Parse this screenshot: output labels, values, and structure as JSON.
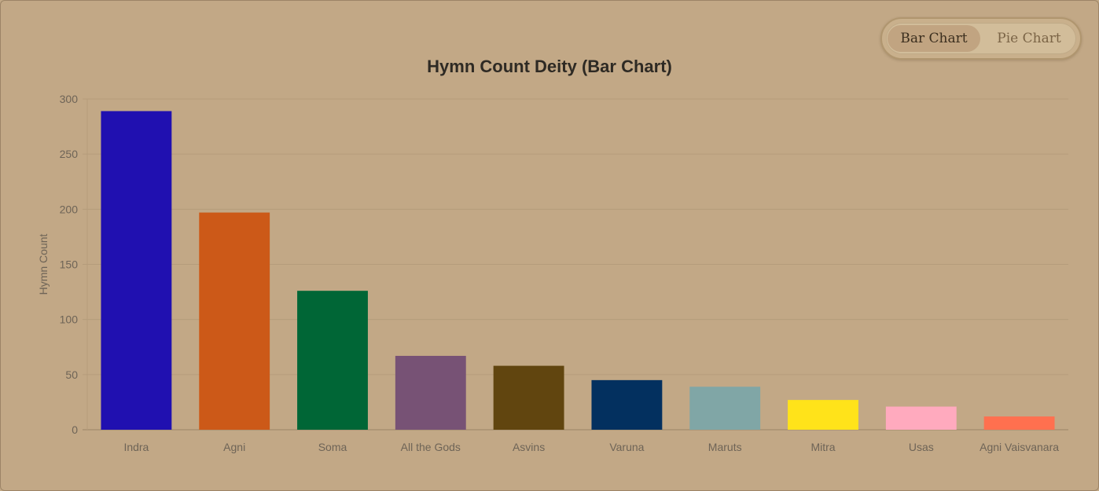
{
  "toggle": {
    "bar_label": "Bar Chart",
    "pie_label": "Pie Chart",
    "active": "bar"
  },
  "chart_data": {
    "type": "bar",
    "title": "Hymn Count Deity (Bar Chart)",
    "xlabel": "",
    "ylabel": "Hymn Count",
    "ylim": [
      0,
      300
    ],
    "yticks": [
      0,
      50,
      100,
      150,
      200,
      250,
      300
    ],
    "grid": true,
    "legend": "none",
    "categories": [
      "Indra",
      "Agni",
      "Soma",
      "All the Gods",
      "Asvins",
      "Varuna",
      "Maruts",
      "Mitra",
      "Usas",
      "Agni Vaisvanara"
    ],
    "values": [
      289,
      197,
      126,
      67,
      58,
      45,
      39,
      27,
      21,
      12
    ],
    "colors": [
      "#2010b0",
      "#cc5918",
      "#006636",
      "#775275",
      "#61450f",
      "#03305f",
      "#80a6a6",
      "#ffe31a",
      "#ffaabe",
      "#ff704f"
    ]
  }
}
